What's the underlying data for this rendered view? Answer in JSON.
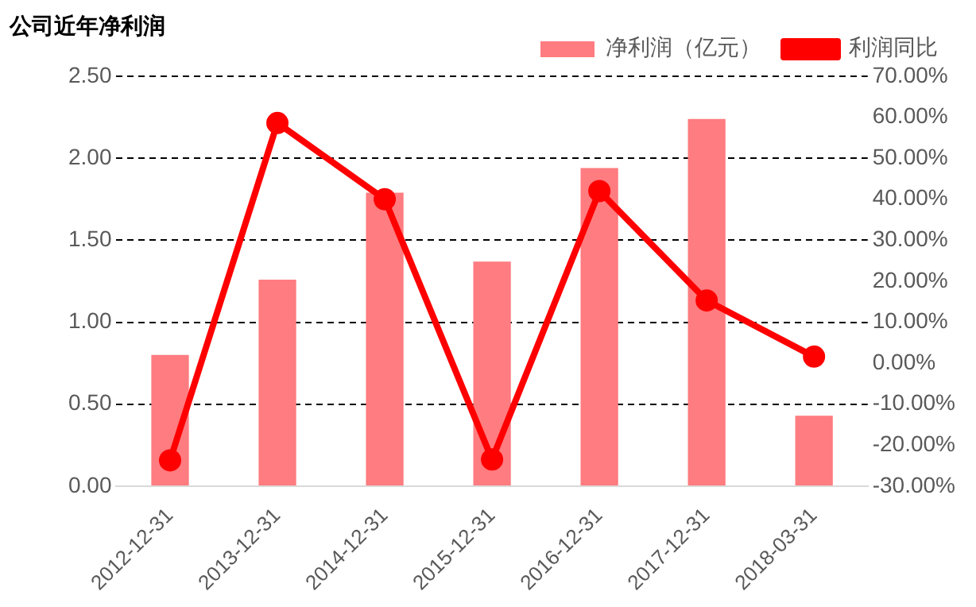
{
  "chart_data": {
    "type": "bar",
    "title": "公司近年净利润",
    "categories": [
      "2012-12-31",
      "2013-12-31",
      "2014-12-31",
      "2015-12-31",
      "2016-12-31",
      "2017-12-31",
      "2018-03-31"
    ],
    "series": [
      {
        "name": "净利润（亿元）",
        "color": "#ff7c80",
        "values": [
          0.8,
          1.26,
          1.79,
          1.37,
          1.94,
          2.24,
          0.43
        ]
      },
      {
        "name": "利润同比",
        "type": "line",
        "axis": "y2",
        "color": "#ff0000",
        "marker": "circle",
        "values": [
          -23.7,
          58.6,
          40.0,
          -23.5,
          42.0,
          15.3,
          1.6
        ]
      }
    ],
    "ylim": [
      0,
      2.5
    ],
    "yticks": [
      {
        "value": 0,
        "label": "0.00"
      },
      {
        "value": 0.5,
        "label": "0.50"
      },
      {
        "value": 1,
        "label": "1.00"
      },
      {
        "value": 1.5,
        "label": "1.50"
      },
      {
        "value": 2,
        "label": "2.00"
      },
      {
        "value": 2.5,
        "label": "2.50"
      }
    ],
    "y2lim": [
      -30,
      70
    ],
    "y2ticks": [
      {
        "value": -30,
        "label": "-30.00%"
      },
      {
        "value": -20,
        "label": "-20.00%"
      },
      {
        "value": -10,
        "label": "-10.00%"
      },
      {
        "value": 0,
        "label": "0.00%"
      },
      {
        "value": 10,
        "label": "10.00%"
      },
      {
        "value": 20,
        "label": "20.00%"
      },
      {
        "value": 30,
        "label": "30.00%"
      },
      {
        "value": 40,
        "label": "40.00%"
      },
      {
        "value": 50,
        "label": "50.00%"
      },
      {
        "value": 60,
        "label": "60.00%"
      },
      {
        "value": 70,
        "label": "70.00%"
      }
    ],
    "grid": "y",
    "legend": "top right"
  }
}
